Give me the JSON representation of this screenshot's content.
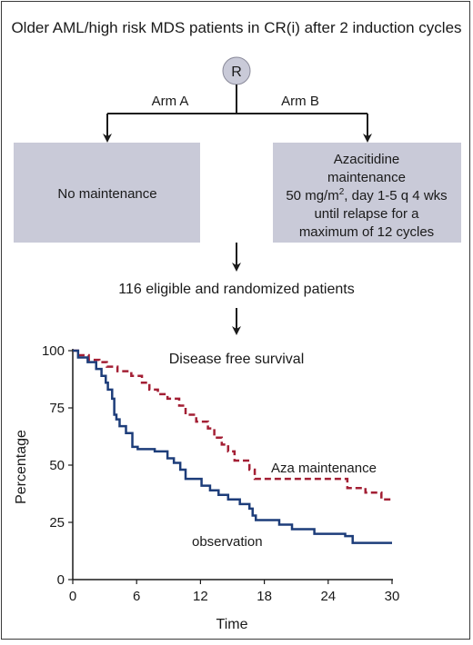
{
  "header": {
    "title": "Older AML/high risk MDS patients in CR(i) after 2 induction cycles"
  },
  "random_node": {
    "label": "R"
  },
  "arms": {
    "a": {
      "label": "Arm A",
      "box_text": "No maintenance"
    },
    "b": {
      "label": "Arm B",
      "box_lines": [
        "Azacitidine",
        "maintenance",
        "50 mg/m",
        "until relapse for a",
        "maximum of 12 cycles"
      ],
      "dose_superscript": "2",
      "dose_suffix": ", day 1-5 q 4 wks"
    }
  },
  "enrollment": {
    "text": "116 eligible and randomized patients"
  },
  "colors": {
    "box_fill": "#c9cad8",
    "aza": "#a31f34",
    "observation": "#1d3d7a",
    "node_fill": "#c9cad8"
  },
  "chart_data": {
    "type": "line",
    "title": "Disease free survival",
    "xlabel": "Time",
    "ylabel": "Percentage",
    "xlim": [
      0,
      30
    ],
    "ylim": [
      0,
      100
    ],
    "x_ticks": [
      0,
      6,
      12,
      18,
      24,
      30
    ],
    "y_ticks": [
      0,
      25,
      50,
      75,
      100
    ],
    "annotations": [
      "Aza maintenance",
      "observation"
    ],
    "series": [
      {
        "name": "Aza maintenance",
        "style": "dashed",
        "color": "#a31f34",
        "step_points": [
          [
            0,
            100
          ],
          [
            0.6,
            98
          ],
          [
            1.5,
            96
          ],
          [
            2.5,
            95
          ],
          [
            3.2,
            93
          ],
          [
            4.2,
            91
          ],
          [
            5.5,
            89
          ],
          [
            6.5,
            86
          ],
          [
            7.2,
            83
          ],
          [
            8,
            81
          ],
          [
            8.9,
            79
          ],
          [
            10,
            76
          ],
          [
            10.6,
            72
          ],
          [
            11.6,
            69
          ],
          [
            12.7,
            66
          ],
          [
            13.3,
            62
          ],
          [
            14,
            59
          ],
          [
            14.6,
            56
          ],
          [
            15.2,
            52
          ],
          [
            16.6,
            48
          ],
          [
            17.1,
            44
          ],
          [
            25.8,
            40
          ],
          [
            27.5,
            38
          ],
          [
            29,
            35
          ],
          [
            30,
            35
          ]
        ]
      },
      {
        "name": "observation",
        "style": "solid",
        "color": "#1d3d7a",
        "step_points": [
          [
            0,
            100
          ],
          [
            0.5,
            97
          ],
          [
            1.4,
            95
          ],
          [
            2.2,
            92
          ],
          [
            2.7,
            89
          ],
          [
            3.1,
            86
          ],
          [
            3.3,
            83
          ],
          [
            3.7,
            79
          ],
          [
            3.9,
            72
          ],
          [
            4.1,
            70
          ],
          [
            4.4,
            67
          ],
          [
            5.0,
            64
          ],
          [
            5.6,
            58
          ],
          [
            6.1,
            57
          ],
          [
            7.7,
            56
          ],
          [
            8.9,
            53
          ],
          [
            9.5,
            51
          ],
          [
            10.1,
            48
          ],
          [
            10.6,
            44
          ],
          [
            12.1,
            41
          ],
          [
            12.9,
            39
          ],
          [
            13.7,
            37
          ],
          [
            14.6,
            35
          ],
          [
            15.7,
            33
          ],
          [
            16.6,
            31
          ],
          [
            16.9,
            28
          ],
          [
            17.2,
            26
          ],
          [
            19.4,
            24
          ],
          [
            20.6,
            22
          ],
          [
            22.7,
            20
          ],
          [
            25.6,
            19
          ],
          [
            26.3,
            16
          ],
          [
            30,
            16
          ]
        ]
      }
    ]
  }
}
